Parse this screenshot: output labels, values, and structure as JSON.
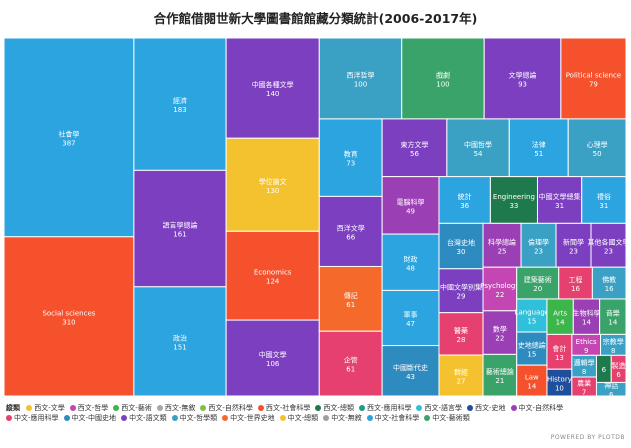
{
  "chart_data": {
    "type": "treemap",
    "title": "合作館借閱世新大學圖書館館藏分類統計(2006-2017年)",
    "legend": {
      "title": "縱類",
      "placement": "bottom-left",
      "items": [
        {
          "name": "西文-文學",
          "color": "#f4c22e"
        },
        {
          "name": "西文-哲學",
          "color": "#c446b3"
        },
        {
          "name": "西文-藝術",
          "color": "#3cb54a"
        },
        {
          "name": "西文-無敘",
          "color": "#a2a8ad"
        },
        {
          "name": "西文-自然科學",
          "color": "#7dc242"
        },
        {
          "name": "西文-社會科學",
          "color": "#f4512c"
        },
        {
          "name": "西文-總類",
          "color": "#1e7a4c"
        },
        {
          "name": "西文-應用科學",
          "color": "#16a085"
        },
        {
          "name": "西文-語言學",
          "color": "#30c0dc"
        },
        {
          "name": "西文-史地",
          "color": "#1f4e9c"
        },
        {
          "name": "中文-自然科學",
          "color": "#9b3fb5"
        },
        {
          "name": "中文-應用科學",
          "color": "#e5406e"
        },
        {
          "name": "中文-中國史地",
          "color": "#2e8bc0"
        },
        {
          "name": "中文-語文類",
          "color": "#7c3fbf"
        },
        {
          "name": "中文-哲學類",
          "color": "#3aa0c4"
        },
        {
          "name": "中文-世界史地",
          "color": "#f56a2a"
        },
        {
          "name": "中文-總類",
          "color": "#f4c22e"
        },
        {
          "name": "中文-無敘",
          "color": "#9aa0a6"
        },
        {
          "name": "中文-社會科學",
          "color": "#2ba4e0"
        },
        {
          "name": "中文-藝術類",
          "color": "#3aa36a"
        }
      ]
    },
    "groups": [
      {
        "category": "西文-哲學",
        "items": [
          {
            "label": "Psychology",
            "value": 22
          },
          {
            "label": "Ethics",
            "value": 9
          }
        ]
      },
      {
        "category": "西文-語言學",
        "items": [
          {
            "label": "Language",
            "value": 15
          }
        ]
      },
      {
        "category": "西文-史地",
        "items": [
          {
            "label": "History",
            "value": 10
          }
        ]
      },
      {
        "category": "西文-總類",
        "items": [
          {
            "label": "",
            "value": 6
          },
          {
            "label": "Engineering",
            "value": 33
          }
        ]
      },
      {
        "category": "西文-社會科學",
        "items": [
          {
            "label": "Law",
            "value": 14
          },
          {
            "label": "Political science",
            "value": 79
          },
          {
            "label": "Economics",
            "value": 124
          },
          {
            "label": "Social sciences",
            "value": 310
          }
        ]
      },
      {
        "category": "西文-藝術",
        "items": [
          {
            "label": "Arts",
            "value": 14
          }
        ]
      },
      {
        "category": "中文-世界史地",
        "items": [
          {
            "label": "傳記",
            "value": 61
          }
        ]
      },
      {
        "category": "中文-中國史地",
        "items": [
          {
            "label": "史地總論",
            "value": 15
          },
          {
            "label": "台灣史地",
            "value": 30
          },
          {
            "label": "中國斷代史",
            "value": 43
          }
        ]
      },
      {
        "category": "中文-自然科學",
        "items": [
          {
            "label": "生物科學",
            "value": 14
          },
          {
            "label": "數學",
            "value": 22
          },
          {
            "label": "科學總論",
            "value": 25
          },
          {
            "label": "電腦科學",
            "value": 49
          }
        ]
      },
      {
        "category": "中文-應用科學",
        "items": [
          {
            "label": "農業",
            "value": 7
          },
          {
            "label": "會計",
            "value": 13
          },
          {
            "label": "工程",
            "value": 16
          },
          {
            "label": "醫藥",
            "value": 28
          },
          {
            "label": "製造",
            "value": 6
          },
          {
            "label": "企管",
            "value": 61
          }
        ]
      },
      {
        "category": "中文-哲學類",
        "items": [
          {
            "label": "神話",
            "value": 6
          },
          {
            "label": "宗教學",
            "value": 8
          },
          {
            "label": "佛教",
            "value": 16
          },
          {
            "label": "邏輯學",
            "value": 8
          },
          {
            "label": "倫理學",
            "value": 23
          },
          {
            "label": "心理學",
            "value": 50
          },
          {
            "label": "中國哲學",
            "value": 54
          },
          {
            "label": "西洋哲學",
            "value": 100
          }
        ]
      },
      {
        "category": "中文-藝術類",
        "items": [
          {
            "label": "音樂",
            "value": 14
          },
          {
            "label": "建築藝術",
            "value": 20
          },
          {
            "label": "藝術總論",
            "value": 21
          },
          {
            "label": "戲劇",
            "value": 100
          }
        ]
      },
      {
        "category": "中文-總類",
        "items": [
          {
            "label": "學位論文",
            "value": 130
          },
          {
            "label": "群經",
            "value": 27
          }
        ]
      },
      {
        "category": "中文-語文類",
        "items": [
          {
            "label": "新聞學",
            "value": 23
          },
          {
            "label": "其他各國文學",
            "value": 23
          },
          {
            "label": "中國文學別集",
            "value": 29
          },
          {
            "label": "中國文學總集",
            "value": 31
          },
          {
            "label": "東方文學",
            "value": 56
          },
          {
            "label": "西洋文學",
            "value": 66
          },
          {
            "label": "文學總論",
            "value": 93
          },
          {
            "label": "中國文學",
            "value": 106
          },
          {
            "label": "中國各種文學",
            "value": 140
          },
          {
            "label": "語言學總論",
            "value": 161
          }
        ]
      },
      {
        "category": "中文-社會科學",
        "items": [
          {
            "label": "禮俗",
            "value": 31
          },
          {
            "label": "統計",
            "value": 36
          },
          {
            "label": "軍事",
            "value": 47
          },
          {
            "label": "財政",
            "value": 48
          },
          {
            "label": "法律",
            "value": 51
          },
          {
            "label": "教育",
            "value": 73
          },
          {
            "label": "政治",
            "value": 151
          },
          {
            "label": "經濟",
            "value": 183
          },
          {
            "label": "社會學",
            "value": 387
          }
        ]
      }
    ]
  },
  "footer": "POWERED BY PLOTDB"
}
